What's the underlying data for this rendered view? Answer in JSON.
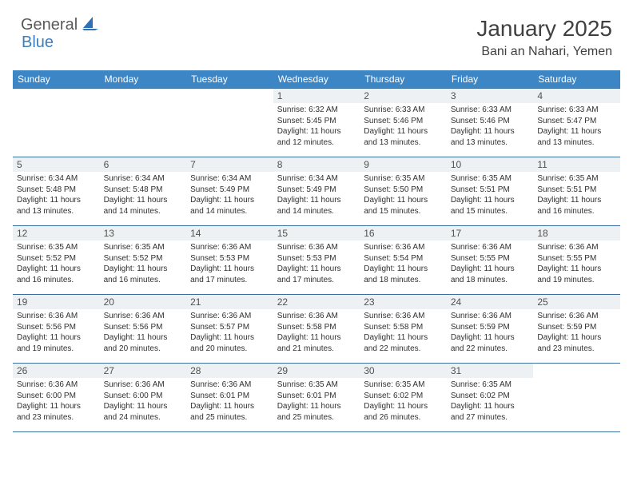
{
  "brand": {
    "part1": "General",
    "part2": "Blue"
  },
  "title": "January 2025",
  "location": "Bani an Nahari, Yemen",
  "colors": {
    "header_bg": "#3d86c6",
    "header_text": "#ffffff",
    "daynum_bg": "#eef1f3",
    "border": "#3d6ea0",
    "brand_gray": "#5a5a5a",
    "brand_blue": "#3d7ebf"
  },
  "weekdays": [
    "Sunday",
    "Monday",
    "Tuesday",
    "Wednesday",
    "Thursday",
    "Friday",
    "Saturday"
  ],
  "weeks": [
    [
      null,
      null,
      null,
      {
        "d": "1",
        "sr": "6:32 AM",
        "ss": "5:45 PM",
        "dl": "11 hours and 12 minutes."
      },
      {
        "d": "2",
        "sr": "6:33 AM",
        "ss": "5:46 PM",
        "dl": "11 hours and 13 minutes."
      },
      {
        "d": "3",
        "sr": "6:33 AM",
        "ss": "5:46 PM",
        "dl": "11 hours and 13 minutes."
      },
      {
        "d": "4",
        "sr": "6:33 AM",
        "ss": "5:47 PM",
        "dl": "11 hours and 13 minutes."
      }
    ],
    [
      {
        "d": "5",
        "sr": "6:34 AM",
        "ss": "5:48 PM",
        "dl": "11 hours and 13 minutes."
      },
      {
        "d": "6",
        "sr": "6:34 AM",
        "ss": "5:48 PM",
        "dl": "11 hours and 14 minutes."
      },
      {
        "d": "7",
        "sr": "6:34 AM",
        "ss": "5:49 PM",
        "dl": "11 hours and 14 minutes."
      },
      {
        "d": "8",
        "sr": "6:34 AM",
        "ss": "5:49 PM",
        "dl": "11 hours and 14 minutes."
      },
      {
        "d": "9",
        "sr": "6:35 AM",
        "ss": "5:50 PM",
        "dl": "11 hours and 15 minutes."
      },
      {
        "d": "10",
        "sr": "6:35 AM",
        "ss": "5:51 PM",
        "dl": "11 hours and 15 minutes."
      },
      {
        "d": "11",
        "sr": "6:35 AM",
        "ss": "5:51 PM",
        "dl": "11 hours and 16 minutes."
      }
    ],
    [
      {
        "d": "12",
        "sr": "6:35 AM",
        "ss": "5:52 PM",
        "dl": "11 hours and 16 minutes."
      },
      {
        "d": "13",
        "sr": "6:35 AM",
        "ss": "5:52 PM",
        "dl": "11 hours and 16 minutes."
      },
      {
        "d": "14",
        "sr": "6:36 AM",
        "ss": "5:53 PM",
        "dl": "11 hours and 17 minutes."
      },
      {
        "d": "15",
        "sr": "6:36 AM",
        "ss": "5:53 PM",
        "dl": "11 hours and 17 minutes."
      },
      {
        "d": "16",
        "sr": "6:36 AM",
        "ss": "5:54 PM",
        "dl": "11 hours and 18 minutes."
      },
      {
        "d": "17",
        "sr": "6:36 AM",
        "ss": "5:55 PM",
        "dl": "11 hours and 18 minutes."
      },
      {
        "d": "18",
        "sr": "6:36 AM",
        "ss": "5:55 PM",
        "dl": "11 hours and 19 minutes."
      }
    ],
    [
      {
        "d": "19",
        "sr": "6:36 AM",
        "ss": "5:56 PM",
        "dl": "11 hours and 19 minutes."
      },
      {
        "d": "20",
        "sr": "6:36 AM",
        "ss": "5:56 PM",
        "dl": "11 hours and 20 minutes."
      },
      {
        "d": "21",
        "sr": "6:36 AM",
        "ss": "5:57 PM",
        "dl": "11 hours and 20 minutes."
      },
      {
        "d": "22",
        "sr": "6:36 AM",
        "ss": "5:58 PM",
        "dl": "11 hours and 21 minutes."
      },
      {
        "d": "23",
        "sr": "6:36 AM",
        "ss": "5:58 PM",
        "dl": "11 hours and 22 minutes."
      },
      {
        "d": "24",
        "sr": "6:36 AM",
        "ss": "5:59 PM",
        "dl": "11 hours and 22 minutes."
      },
      {
        "d": "25",
        "sr": "6:36 AM",
        "ss": "5:59 PM",
        "dl": "11 hours and 23 minutes."
      }
    ],
    [
      {
        "d": "26",
        "sr": "6:36 AM",
        "ss": "6:00 PM",
        "dl": "11 hours and 23 minutes."
      },
      {
        "d": "27",
        "sr": "6:36 AM",
        "ss": "6:00 PM",
        "dl": "11 hours and 24 minutes."
      },
      {
        "d": "28",
        "sr": "6:36 AM",
        "ss": "6:01 PM",
        "dl": "11 hours and 25 minutes."
      },
      {
        "d": "29",
        "sr": "6:35 AM",
        "ss": "6:01 PM",
        "dl": "11 hours and 25 minutes."
      },
      {
        "d": "30",
        "sr": "6:35 AM",
        "ss": "6:02 PM",
        "dl": "11 hours and 26 minutes."
      },
      {
        "d": "31",
        "sr": "6:35 AM",
        "ss": "6:02 PM",
        "dl": "11 hours and 27 minutes."
      },
      null
    ]
  ],
  "labels": {
    "sunrise": "Sunrise:",
    "sunset": "Sunset:",
    "daylight": "Daylight:"
  }
}
